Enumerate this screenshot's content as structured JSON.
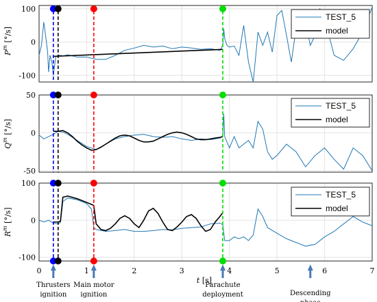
{
  "chart_data": [
    {
      "type": "line",
      "ylabel": "P^m [°/s]",
      "ylim": [
        -120,
        110
      ],
      "yticks": [
        -100,
        0,
        100
      ],
      "ytick_labels": [
        "-100",
        "0",
        "100"
      ],
      "legend_position": "top-right",
      "series": [
        {
          "name": "TEST_5",
          "color": "#1f77b4",
          "x": [
            0.0,
            0.05,
            0.1,
            0.15,
            0.18,
            0.2,
            0.23,
            0.27,
            0.3,
            0.35,
            0.4,
            0.45,
            0.5,
            0.6,
            0.8,
            1.0,
            1.2,
            1.4,
            1.6,
            1.8,
            2.0,
            2.2,
            2.4,
            2.6,
            2.8,
            3.0,
            3.2,
            3.4,
            3.6,
            3.8,
            3.86,
            3.88,
            3.9,
            3.95,
            4.0,
            4.1,
            4.2,
            4.3,
            4.4,
            4.5,
            4.6,
            4.7,
            4.8,
            4.9,
            5.0,
            5.1,
            5.2,
            5.3,
            5.4,
            5.5,
            5.6,
            5.7,
            5.8,
            5.9,
            6.0,
            6.2,
            6.4,
            6.6,
            6.8,
            7.0
          ],
          "y": [
            -40,
            -10,
            60,
            5,
            -30,
            -90,
            -40,
            -60,
            -100,
            -45,
            -40,
            -40,
            -42,
            -38,
            -45,
            -45,
            -52,
            -52,
            -40,
            -25,
            -18,
            -10,
            -15,
            -12,
            -20,
            -15,
            -18,
            -22,
            -20,
            -25,
            -10,
            40,
            10,
            -10,
            -15,
            -12,
            -40,
            50,
            -60,
            -120,
            30,
            -10,
            30,
            -30,
            80,
            95,
            20,
            -60,
            40,
            80,
            60,
            -10,
            20,
            100,
            70,
            -40,
            -55,
            -20,
            30,
            105
          ]
        },
        {
          "name": "model",
          "color": "#000000",
          "x": [
            0.3,
            3.86
          ],
          "y": [
            -43,
            -22
          ]
        }
      ],
      "annotations_marker_y": 100
    },
    {
      "type": "line",
      "ylabel": "Q^m [°/s]",
      "ylim": [
        -52,
        50
      ],
      "yticks": [
        -50,
        0,
        50
      ],
      "ytick_labels": [
        "-50",
        "0",
        "50"
      ],
      "legend_position": "top-right",
      "series": [
        {
          "name": "TEST_5",
          "color": "#1f77b4",
          "x": [
            0.0,
            0.1,
            0.2,
            0.3,
            0.4,
            0.5,
            0.6,
            0.8,
            1.0,
            1.2,
            1.4,
            1.6,
            1.8,
            2.0,
            2.2,
            2.4,
            2.6,
            2.8,
            3.0,
            3.2,
            3.4,
            3.6,
            3.8,
            3.86,
            3.88,
            3.9,
            4.0,
            4.1,
            4.2,
            4.3,
            4.4,
            4.5,
            4.6,
            4.7,
            4.8,
            4.9,
            5.0,
            5.2,
            5.4,
            5.6,
            5.8,
            6.0,
            6.2,
            6.4,
            6.6,
            6.8,
            7.0
          ],
          "y": [
            -3,
            -8,
            -5,
            -2,
            2,
            1,
            -2,
            -10,
            -18,
            -22,
            -15,
            -8,
            -5,
            -3,
            -2,
            -5,
            -6,
            -5,
            -8,
            -10,
            -8,
            -9,
            -7,
            -5,
            25,
            -5,
            -20,
            -5,
            -20,
            -15,
            -10,
            -20,
            15,
            5,
            -25,
            -35,
            -30,
            -15,
            -25,
            -45,
            -30,
            -20,
            -35,
            -48,
            -20,
            -30,
            -50
          ]
        },
        {
          "name": "model",
          "color": "#000000",
          "x": [
            0.3,
            0.4,
            0.5,
            0.6,
            0.7,
            0.8,
            0.9,
            1.0,
            1.1,
            1.2,
            1.3,
            1.4,
            1.5,
            1.6,
            1.7,
            1.8,
            1.9,
            2.0,
            2.1,
            2.2,
            2.3,
            2.4,
            2.5,
            2.6,
            2.7,
            2.8,
            2.9,
            3.0,
            3.1,
            3.2,
            3.3,
            3.4,
            3.5,
            3.6,
            3.7,
            3.8,
            3.86
          ],
          "y": [
            2,
            2,
            3,
            0,
            -5,
            -11,
            -16,
            -20,
            -23,
            -22,
            -19,
            -15,
            -11,
            -7,
            -4,
            -3,
            -4,
            -7,
            -10,
            -12,
            -12,
            -11,
            -8,
            -5,
            -2,
            0,
            1,
            0,
            -2,
            -5,
            -8,
            -9,
            -9,
            -8,
            -7,
            -6,
            -5
          ]
        }
      ],
      "annotations_marker_y": 50
    },
    {
      "type": "line",
      "ylabel": "R^m [°/s]",
      "ylim": [
        -110,
        100
      ],
      "yticks": [
        -100,
        0,
        100
      ],
      "ytick_labels": [
        "-100",
        "0",
        "100"
      ],
      "xlabel": "t [s]",
      "xlim": [
        0,
        7
      ],
      "xticks": [
        0,
        1,
        2,
        3,
        4,
        5,
        6,
        7
      ],
      "xtick_labels": [
        "0",
        "1",
        "2",
        "3",
        "4",
        "5",
        "6",
        "7"
      ],
      "legend_position": "top-right",
      "series": [
        {
          "name": "TEST_5",
          "color": "#1f77b4",
          "x": [
            0.0,
            0.1,
            0.2,
            0.3,
            0.4,
            0.45,
            0.5,
            0.6,
            0.8,
            1.0,
            1.1,
            1.15,
            1.2,
            1.4,
            1.6,
            1.8,
            2.0,
            2.2,
            2.4,
            2.6,
            2.8,
            3.0,
            3.2,
            3.4,
            3.6,
            3.8,
            3.86,
            3.9,
            4.0,
            4.1,
            4.2,
            4.3,
            4.4,
            4.5,
            4.6,
            4.7,
            4.8,
            5.0,
            5.2,
            5.4,
            5.6,
            5.8,
            6.0,
            6.2,
            6.4,
            6.6,
            6.8,
            7.0
          ],
          "y": [
            0,
            -5,
            0,
            -8,
            -10,
            -6,
            50,
            60,
            55,
            45,
            30,
            -20,
            -25,
            -30,
            -28,
            -25,
            -30,
            -30,
            -28,
            -25,
            -26,
            -22,
            -20,
            -18,
            -10,
            -8,
            -12,
            -55,
            -55,
            -45,
            -50,
            -45,
            -55,
            -40,
            30,
            10,
            -20,
            -35,
            -50,
            -60,
            -70,
            -65,
            -45,
            -30,
            -10,
            10,
            -5,
            -15
          ]
        },
        {
          "name": "model",
          "color": "#000000",
          "x": [
            0.3,
            0.4,
            0.45,
            0.5,
            0.6,
            0.8,
            1.0,
            1.15,
            1.2,
            1.3,
            1.4,
            1.5,
            1.6,
            1.7,
            1.8,
            1.9,
            2.0,
            2.1,
            2.2,
            2.3,
            2.4,
            2.5,
            2.6,
            2.7,
            2.8,
            2.9,
            3.0,
            3.1,
            3.2,
            3.3,
            3.4,
            3.5,
            3.6,
            3.7,
            3.8,
            3.86
          ],
          "y": [
            -5,
            -5,
            -3,
            62,
            65,
            58,
            48,
            40,
            -10,
            -25,
            -28,
            -22,
            -10,
            5,
            12,
            5,
            -10,
            -20,
            0,
            25,
            32,
            18,
            -5,
            -25,
            -28,
            -18,
            -5,
            10,
            15,
            5,
            -15,
            -30,
            -25,
            -5,
            10,
            20
          ]
        }
      ],
      "annotations_marker_y": 100
    }
  ],
  "events": [
    {
      "t": 0.3,
      "color": "#0000ff"
    },
    {
      "t": 0.4,
      "color": "#000000"
    },
    {
      "t": 1.15,
      "color": "#ff0000"
    },
    {
      "t": 3.86,
      "color": "#00dd00"
    }
  ],
  "arrow_color": "#4a7ab5",
  "arrow_times": [
    0.3,
    1.15,
    3.86,
    5.7
  ],
  "annotations": [
    {
      "t": 0.3,
      "lines": [
        "Thrusters",
        "ignition"
      ]
    },
    {
      "t": 1.15,
      "lines": [
        "Main motor",
        "ignition"
      ]
    },
    {
      "t": 3.86,
      "lines": [
        "Parachute",
        "deployment"
      ]
    },
    {
      "t": 5.7,
      "lines": [
        "Descending",
        "phase"
      ]
    }
  ]
}
